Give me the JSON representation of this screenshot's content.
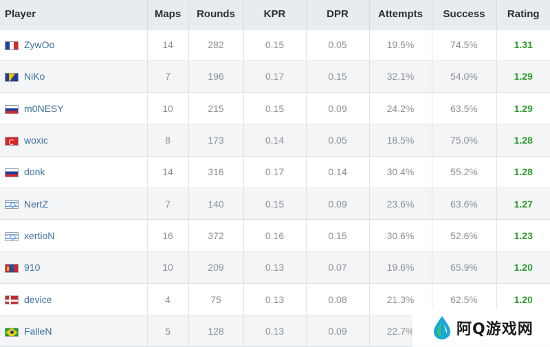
{
  "table": {
    "headers": {
      "player": "Player",
      "maps": "Maps",
      "rounds": "Rounds",
      "kpr": "KPR",
      "dpr": "DPR",
      "attempts": "Attempts",
      "success": "Success",
      "rating": "Rating"
    },
    "rows": [
      {
        "flag": "france-flag-icon",
        "name": "ZywOo",
        "maps": "14",
        "rounds": "282",
        "kpr": "0.15",
        "dpr": "0.05",
        "attempts": "19.5%",
        "success": "74.5%",
        "rating": "1.31"
      },
      {
        "flag": "bosnia-flag-icon",
        "name": "NiKo",
        "maps": "7",
        "rounds": "196",
        "kpr": "0.17",
        "dpr": "0.15",
        "attempts": "32.1%",
        "success": "54.0%",
        "rating": "1.29"
      },
      {
        "flag": "russia-flag-icon",
        "name": "m0NESY",
        "maps": "10",
        "rounds": "215",
        "kpr": "0.15",
        "dpr": "0.09",
        "attempts": "24.2%",
        "success": "63.5%",
        "rating": "1.29"
      },
      {
        "flag": "turkey-flag-icon",
        "name": "woxic",
        "maps": "8",
        "rounds": "173",
        "kpr": "0.14",
        "dpr": "0.05",
        "attempts": "18.5%",
        "success": "75.0%",
        "rating": "1.28"
      },
      {
        "flag": "russia-flag-icon",
        "name": "donk",
        "maps": "14",
        "rounds": "316",
        "kpr": "0.17",
        "dpr": "0.14",
        "attempts": "30.4%",
        "success": "55.2%",
        "rating": "1.28"
      },
      {
        "flag": "israel-flag-icon",
        "name": "NertZ",
        "maps": "7",
        "rounds": "140",
        "kpr": "0.15",
        "dpr": "0.09",
        "attempts": "23.6%",
        "success": "63.6%",
        "rating": "1.27"
      },
      {
        "flag": "israel-flag-icon",
        "name": "xertioN",
        "maps": "16",
        "rounds": "372",
        "kpr": "0.16",
        "dpr": "0.15",
        "attempts": "30.6%",
        "success": "52.6%",
        "rating": "1.23"
      },
      {
        "flag": "mongolia-flag-icon",
        "name": "910",
        "maps": "10",
        "rounds": "209",
        "kpr": "0.13",
        "dpr": "0.07",
        "attempts": "19.6%",
        "success": "65.9%",
        "rating": "1.20"
      },
      {
        "flag": "denmark-flag-icon",
        "name": "device",
        "maps": "4",
        "rounds": "75",
        "kpr": "0.13",
        "dpr": "0.08",
        "attempts": "21.3%",
        "success": "62.5%",
        "rating": "1.20"
      },
      {
        "flag": "brazil-flag-icon",
        "name": "FalleN",
        "maps": "5",
        "rounds": "128",
        "kpr": "0.13",
        "dpr": "0.09",
        "attempts": "22.7%",
        "success": "",
        "rating": ""
      }
    ]
  },
  "watermark": {
    "text": "阿Q游戏网",
    "icon": "water-drop-logo-icon"
  },
  "colors": {
    "header_bg": "#e9ecef",
    "player_link": "#3b6fa0",
    "rating_green": "#2e9b2e",
    "stat_gray": "#8a9096"
  }
}
